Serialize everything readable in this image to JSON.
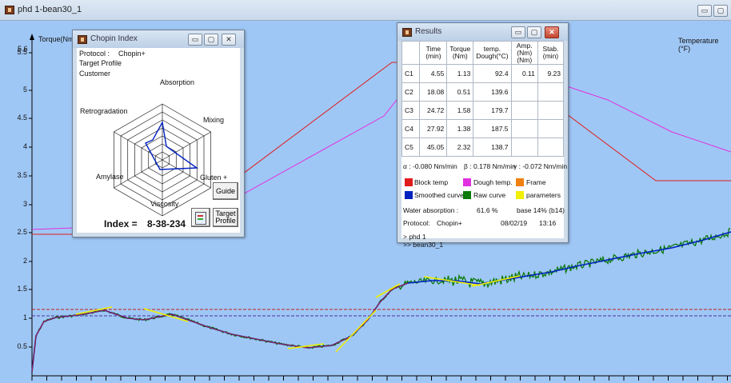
{
  "window": {
    "title": "phd 1-bean30_1"
  },
  "plot": {
    "y_axis_label": "Torque(Nm)",
    "right_axis_label": "Temperature  (°F)",
    "y_ticks": [
      "5.5",
      "5",
      "4.5",
      "4",
      "3.5",
      "3",
      "2.5",
      "2",
      "1.5",
      "1",
      "0.5"
    ],
    "top_ticks": "5.6",
    "colors": {
      "block_temp": "#e01c1c",
      "dough_temp": "#e030e0",
      "smoothed": "#0020c0",
      "raw": "#0a7a0a",
      "params": "#f0f000",
      "frame": "#f08010",
      "bg": "#9fc7f5"
    }
  },
  "chopin": {
    "title": "Chopin Index",
    "protocol_label": "Protocol :",
    "protocol_value": "Chopin+",
    "target_profile": "Target Profile",
    "customer": "Customer",
    "axes": [
      "Absorption",
      "Mixing",
      "Gluten +",
      "Viscosity",
      "Amylase",
      "Retrogradation"
    ],
    "index_label": "Index =",
    "index_value": "8-38-234",
    "guide_button": "Guide",
    "target_button_l1": "Target",
    "target_button_l2": "Profile"
  },
  "results": {
    "title": "Results",
    "headers": [
      [
        "",
        ""
      ],
      [
        "Time",
        "(min)"
      ],
      [
        "Torque",
        "(Nm)"
      ],
      [
        "temp.",
        "Dough(°C)"
      ],
      [
        "Amp. (Nm)",
        "(Nm)"
      ],
      [
        "Stab.",
        "(min)"
      ]
    ],
    "rows": [
      {
        "label": "C1",
        "time": "4.55",
        "torque": "1.13",
        "temp": "92.4",
        "amp": "0.11",
        "stab": "9.23"
      },
      {
        "label": "C2",
        "time": "18.08",
        "torque": "0.51",
        "temp": "139.6",
        "amp": "",
        "stab": ""
      },
      {
        "label": "C3",
        "time": "24.72",
        "torque": "1.58",
        "temp": "179.7",
        "amp": "",
        "stab": ""
      },
      {
        "label": "C4",
        "time": "27.92",
        "torque": "1.38",
        "temp": "187.5",
        "amp": "",
        "stab": ""
      },
      {
        "label": "C5",
        "time": "45.05",
        "torque": "2.32",
        "temp": "138.7",
        "amp": "",
        "stab": ""
      }
    ],
    "alpha": "α : -0.080  Nm/min",
    "beta": "β :  0.178  Nm/min",
    "gamma": "γ :  -0.072  Nm/min",
    "legend": [
      "Block temp",
      "Dough temp.",
      "Frame",
      "Smoothed curve",
      "Raw curve",
      "parameters"
    ],
    "water_label": "Water absorption :",
    "water_value": "61.6 %",
    "base": "base 14% (b14)",
    "protocol_label": "Protocol:",
    "protocol_value": "Chopin+",
    "date": "08/02/19",
    "time": "13:16",
    "path1": "> phd 1",
    "path2": ">> bean30_1"
  }
}
